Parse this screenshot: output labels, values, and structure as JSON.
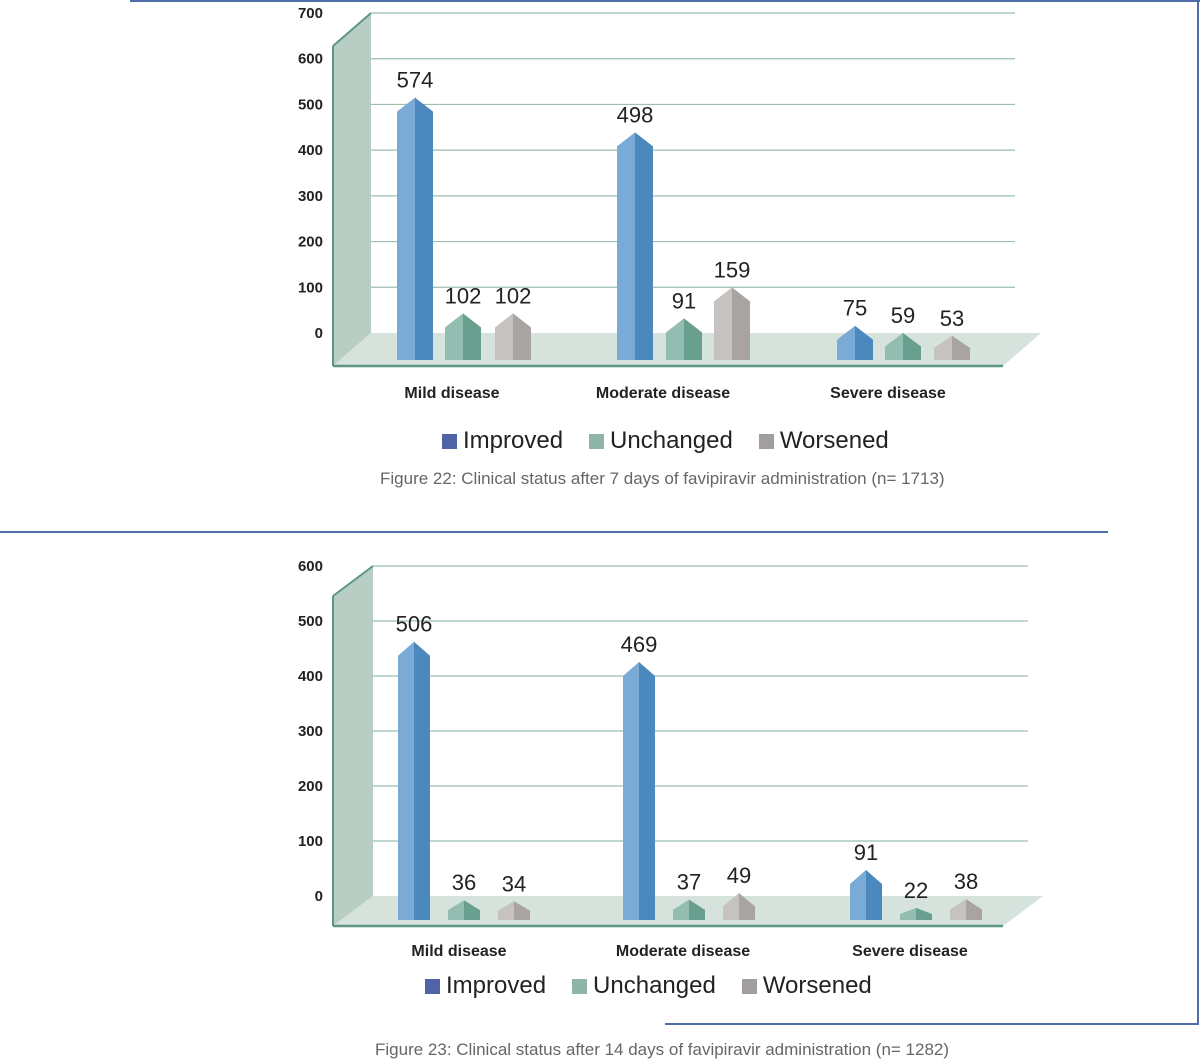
{
  "colors": {
    "improved_legend": "#4f63a6",
    "unchanged_legend": "#8eb5a6",
    "worsened_legend": "#a39e9e",
    "improved_bar": "#4e8fc8",
    "unchanged_bar": "#6fa795",
    "worsened_bar": "#b2adab",
    "wall": "#b8cdc3",
    "floor": "#d6e2dc",
    "frame": "#4f6ea9"
  },
  "chart_data": [
    {
      "type": "bar",
      "title": "",
      "categories": [
        "Mild disease",
        "Moderate disease",
        "Severe disease"
      ],
      "series": [
        {
          "name": "Improved",
          "values": [
            574,
            498,
            75
          ]
        },
        {
          "name": "Unchanged",
          "values": [
            102,
            91,
            59
          ]
        },
        {
          "name": "Worsened",
          "values": [
            102,
            159,
            53
          ]
        }
      ],
      "yticks": [
        "700",
        "600",
        "500",
        "400",
        "300",
        "200",
        "100",
        "0"
      ],
      "ylim": [
        0,
        700
      ],
      "grid": true,
      "legend": [
        "Improved",
        "Unchanged",
        "Worsened"
      ],
      "caption": "Figure 22: Clinical status after 7 days of favipiravir administration (n= 1713)"
    },
    {
      "type": "bar",
      "title": "",
      "categories": [
        "Mild disease",
        "Moderate disease",
        "Severe disease"
      ],
      "series": [
        {
          "name": "Improved",
          "values": [
            506,
            469,
            91
          ]
        },
        {
          "name": "Unchanged",
          "values": [
            36,
            37,
            22
          ]
        },
        {
          "name": "Worsened",
          "values": [
            34,
            49,
            38
          ]
        }
      ],
      "yticks": [
        "600",
        "500",
        "400",
        "300",
        "200",
        "100",
        "0"
      ],
      "ylim": [
        0,
        600
      ],
      "grid": true,
      "legend": [
        "Improved",
        "Unchanged",
        "Worsened"
      ],
      "caption": "Figure 23: Clinical status after 14 days of favipiravir administration (n= 1282)"
    }
  ]
}
